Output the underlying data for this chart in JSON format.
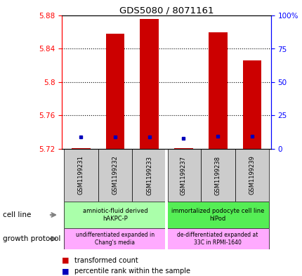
{
  "title": "GDS5080 / 8071161",
  "samples": [
    "GSM1199231",
    "GSM1199232",
    "GSM1199233",
    "GSM1199237",
    "GSM1199238",
    "GSM1199239"
  ],
  "red_values": [
    5.721,
    5.858,
    5.876,
    5.721,
    5.86,
    5.826
  ],
  "blue_values": [
    5.734,
    5.734,
    5.734,
    5.733,
    5.735,
    5.735
  ],
  "ylim_min": 5.72,
  "ylim_max": 5.88,
  "yticks_left": [
    5.72,
    5.76,
    5.8,
    5.84,
    5.88
  ],
  "yticks_right_vals": [
    0,
    25,
    50,
    75,
    100
  ],
  "yticks_right_labels": [
    "0",
    "25",
    "50",
    "75",
    "100%"
  ],
  "cell_line_labels": [
    "amniotic-fluid derived\nhAKPC-P",
    "immortalized podocyte cell line\nhIPod"
  ],
  "cell_line_groups": [
    [
      0,
      2
    ],
    [
      3,
      5
    ]
  ],
  "growth_protocol_labels": [
    "undifferentiated expanded in\nChang's media",
    "de-differentiated expanded at\n33C in RPMI-1640"
  ],
  "bar_color": "#cc0000",
  "dot_color": "#0000bb",
  "sample_box_color": "#cccccc",
  "cell_line_color_left": "#aaffaa",
  "cell_line_color_right": "#55ee55",
  "growth_color": "#ffaaff",
  "legend_red_label": "transformed count",
  "legend_blue_label": "percentile rank within the sample",
  "cell_line_row_label": "cell line",
  "growth_row_label": "growth protocol"
}
